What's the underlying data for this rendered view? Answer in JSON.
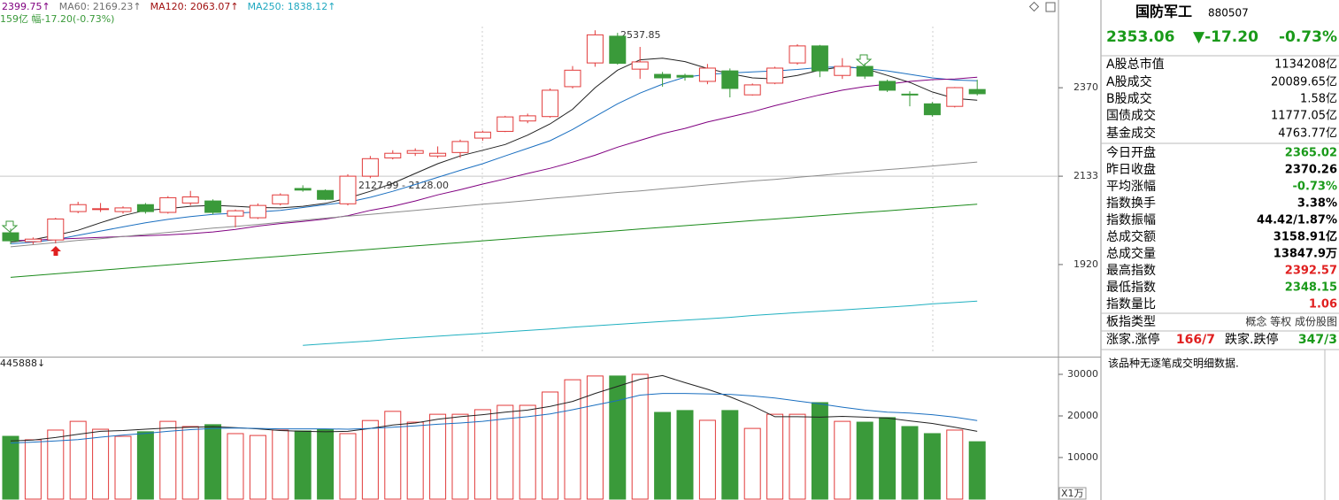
{
  "chart_data": [
    {
      "type": "candlestick",
      "subtitle": "159亿 幅-17.20(-0.73%)",
      "annotations": [
        "2537.85",
        "2127.99 - 2128.00"
      ],
      "log_scale": true,
      "ylim": [
        1726,
        2631
      ],
      "yticks": [
        2370,
        2133,
        1920
      ],
      "reference_line": 2133,
      "up_color": "#e23a3a",
      "down_color": "#3a9a3a",
      "open": [
        1994,
        1973,
        1977,
        2045,
        2050,
        2045,
        2062,
        2043,
        2066,
        2071,
        2034,
        2030,
        2064,
        2102,
        2097,
        2064,
        2133,
        2180,
        2192,
        2185,
        2194,
        2232,
        2250,
        2278,
        2290,
        2373,
        2441,
        2520,
        2423,
        2408,
        2405,
        2388,
        2418,
        2350,
        2383,
        2441,
        2491,
        2405,
        2431,
        2388,
        2352,
        2325,
        2318,
        2365.02
      ],
      "high": [
        2004,
        1983,
        2030,
        2069,
        2066,
        2058,
        2066,
        2083,
        2096,
        2075,
        2050,
        2065,
        2090,
        2110,
        2100,
        2138,
        2185,
        2200,
        2205,
        2210,
        2228,
        2252,
        2292,
        2298,
        2368,
        2432,
        2537.85,
        2530,
        2488,
        2415,
        2410,
        2438,
        2425,
        2382,
        2430,
        2496,
        2494,
        2455,
        2440,
        2393,
        2360,
        2330,
        2372,
        2392.57
      ],
      "low": [
        1967,
        1967,
        1969,
        2041,
        2044,
        2040,
        2040,
        2040,
        2060,
        2038,
        2007,
        2027,
        2060,
        2094,
        2073,
        2060,
        2128,
        2176,
        2185,
        2180,
        2180,
        2225,
        2248,
        2272,
        2287,
        2368,
        2430,
        2436,
        2395,
        2373,
        2390,
        2380,
        2343,
        2348,
        2380,
        2436,
        2400,
        2395,
        2395,
        2358,
        2318,
        2290,
        2315,
        2348.15
      ],
      "close": [
        1975,
        1979,
        2027,
        2062,
        2052,
        2054,
        2045,
        2079,
        2081,
        2043,
        2047,
        2060,
        2086,
        2098,
        2075,
        2133,
        2178,
        2192,
        2199,
        2192,
        2223,
        2248,
        2289,
        2292,
        2363,
        2420,
        2524,
        2440,
        2444,
        2398,
        2400,
        2426,
        2368,
        2378,
        2426,
        2491,
        2418,
        2431,
        2403,
        2363,
        2350,
        2295,
        2370.26,
        2353.06
      ],
      "series": [
        {
          "color": "#222222",
          "values": [
            1972,
            1978,
            1988,
            2000,
            2018,
            2035,
            2048,
            2052,
            2058,
            2060,
            2058,
            2055,
            2054,
            2058,
            2065,
            2078,
            2095,
            2115,
            2140,
            2165,
            2185,
            2200,
            2215,
            2240,
            2270,
            2310,
            2370,
            2420,
            2450,
            2455,
            2445,
            2425,
            2410,
            2398,
            2395,
            2405,
            2420,
            2430,
            2425,
            2405,
            2385,
            2358,
            2340,
            2335
          ]
        },
        {
          "color": "#1a6fc0",
          "values": [
            1968,
            1972,
            1978,
            1988,
            1998,
            2008,
            2018,
            2026,
            2033,
            2038,
            2041,
            2044,
            2048,
            2055,
            2062,
            2068,
            2080,
            2095,
            2112,
            2130,
            2148,
            2165,
            2185,
            2205,
            2225,
            2255,
            2290,
            2325,
            2355,
            2380,
            2400,
            2408,
            2412,
            2415,
            2418,
            2422,
            2428,
            2430,
            2425,
            2418,
            2408,
            2398,
            2392,
            2390
          ]
        },
        {
          "name": "2399.75↑",
          "color": "#800080",
          "label_color": "#800080",
          "values": [
            1975,
            1977,
            1979,
            1981,
            1983,
            1985,
            1987,
            1989,
            1992,
            1996,
            2002,
            2010,
            2016,
            2021,
            2027,
            2035,
            2048,
            2058,
            2071,
            2086,
            2099,
            2113,
            2126,
            2140,
            2153,
            2169,
            2187,
            2208,
            2226,
            2244,
            2258,
            2275,
            2289,
            2303,
            2320,
            2335,
            2350,
            2363,
            2373,
            2380,
            2388,
            2393,
            2395,
            2399.75
          ]
        },
        {
          "name": "MA60: 2169.23↑",
          "color": "#8c8c8c",
          "label_color": "#707070",
          "values": [
            1961,
            1966,
            1971,
            1976,
            1980,
            1985,
            1990,
            1995,
            2000,
            2005,
            2009,
            2014,
            2019,
            2024,
            2029,
            2034,
            2038,
            2043,
            2048,
            2053,
            2058,
            2063,
            2067,
            2072,
            2077,
            2082,
            2087,
            2092,
            2096,
            2101,
            2106,
            2111,
            2116,
            2121,
            2125,
            2130,
            2135,
            2140,
            2145,
            2150,
            2154,
            2159,
            2164,
            2169.23
          ]
        },
        {
          "name": "MA120: 2063.07↑",
          "color": "#1a8a1a",
          "label_color": "#a01010",
          "values": [
            1891,
            1895,
            1899,
            1903,
            1907,
            1911,
            1915,
            1919,
            1923,
            1927,
            1931,
            1935,
            1939,
            1943,
            1947,
            1951,
            1955,
            1959,
            1963,
            1967,
            1971,
            1975,
            1979,
            1983,
            1987,
            1991,
            1995,
            1999,
            2003,
            2007,
            2011,
            2015,
            2019,
            2023,
            2027,
            2031,
            2035,
            2039,
            2043,
            2047,
            2051,
            2055,
            2059,
            2063.07
          ]
        },
        {
          "name": "MA250: 1838.12↑",
          "color": "#20b0c0",
          "label_color": "#20a8c0",
          "values": [
            null,
            null,
            null,
            null,
            null,
            null,
            null,
            null,
            null,
            null,
            null,
            null,
            null,
            1744,
            1747,
            1750,
            1753,
            1757,
            1760,
            1763,
            1766,
            1769,
            1772,
            1775,
            1778,
            1782,
            1785,
            1788,
            1791,
            1794,
            1797,
            1800,
            1803,
            1807,
            1810,
            1813,
            1816,
            1819,
            1822,
            1825,
            1828,
            1832,
            1835,
            1838.12
          ]
        }
      ]
    },
    {
      "type": "volume",
      "title": "445888↓",
      "unit": "X1万",
      "ylim": [
        0,
        33830
      ],
      "yticks": [
        30000,
        20000,
        10000
      ],
      "values": [
        15100,
        14260,
        16600,
        18700,
        16800,
        15100,
        16200,
        18700,
        17450,
        17900,
        15750,
        15300,
        16600,
        16400,
        16800,
        15750,
        18900,
        21100,
        18500,
        20400,
        20400,
        21500,
        22550,
        22550,
        25750,
        28700,
        29600,
        29600,
        30000,
        20850,
        21300,
        18950,
        21300,
        17000,
        20400,
        20400,
        23200,
        18700,
        18500,
        19600,
        17450,
        15750,
        16600,
        13800
      ],
      "series": [
        {
          "color": "#222222",
          "values": [
            14000,
            14200,
            14800,
            15600,
            16300,
            16500,
            16800,
            17100,
            17300,
            17400,
            17200,
            16900,
            16500,
            16300,
            16200,
            16300,
            17000,
            17800,
            18300,
            19200,
            19800,
            20300,
            20900,
            21400,
            22300,
            23500,
            25400,
            27100,
            28800,
            29700,
            28000,
            26400,
            24600,
            22400,
            19800,
            19800,
            19700,
            19900,
            19700,
            19500,
            18800,
            18200,
            17300,
            16300
          ]
        },
        {
          "color": "#1a6fc0",
          "values": [
            13500,
            13700,
            14000,
            14300,
            14900,
            15400,
            15800,
            16300,
            16700,
            17000,
            17100,
            17000,
            16900,
            16900,
            16900,
            16800,
            17000,
            17300,
            17600,
            18000,
            18300,
            18700,
            19300,
            19800,
            20500,
            21500,
            22600,
            23700,
            25000,
            25400,
            25400,
            25300,
            25200,
            24800,
            24300,
            23600,
            22900,
            22100,
            21400,
            20900,
            20700,
            20300,
            19700,
            18900
          ]
        }
      ]
    }
  ],
  "side_panel": {
    "name": "国防军工",
    "code": "880507",
    "price": "2353.06",
    "change": "▼-17.20",
    "change_pct": "-0.73%",
    "rows": [
      {
        "label": "A股总市值",
        "value": "1134208亿",
        "color": "#000000"
      },
      {
        "label": "A股成交",
        "value": "20089.65亿",
        "color": "#000000"
      },
      {
        "label": "B股成交",
        "value": "1.58亿",
        "color": "#000000"
      },
      {
        "label": "国债成交",
        "value": "11777.05亿",
        "color": "#000000"
      },
      {
        "label": "基金成交",
        "value": "4763.77亿",
        "color": "#000000"
      },
      {
        "label": "今日开盘",
        "value": "2365.02",
        "color": "#1a9a1a"
      },
      {
        "label": "昨日收盘",
        "value": "2370.26",
        "color": "#000000"
      },
      {
        "label": "平均涨幅",
        "value": "-0.73%",
        "color": "#1a9a1a"
      },
      {
        "label": "指数换手",
        "value": "3.38%",
        "color": "#000000"
      },
      {
        "label": "指数振幅",
        "value": "44.42/1.87%",
        "color": "#000000"
      },
      {
        "label": "总成交额",
        "value": "3158.91亿",
        "color": "#000000"
      },
      {
        "label": "总成交量",
        "value": "13847.9万",
        "color": "#000000"
      },
      {
        "label": "最高指数",
        "value": "2392.57",
        "color": "#e02020"
      },
      {
        "label": "最低指数",
        "value": "2348.15",
        "color": "#1a9a1a"
      },
      {
        "label": "指数量比",
        "value": "1.06",
        "color": "#e02020"
      }
    ],
    "board_type": {
      "label": "板指类型",
      "value": "概念 等权 成份股图"
    },
    "breadth": {
      "up_label": "涨家.涨停",
      "up": "166/7",
      "down_label": "跌家.跌停",
      "down": "347/3"
    },
    "note": "该品种无逐笔成交明细数据."
  }
}
